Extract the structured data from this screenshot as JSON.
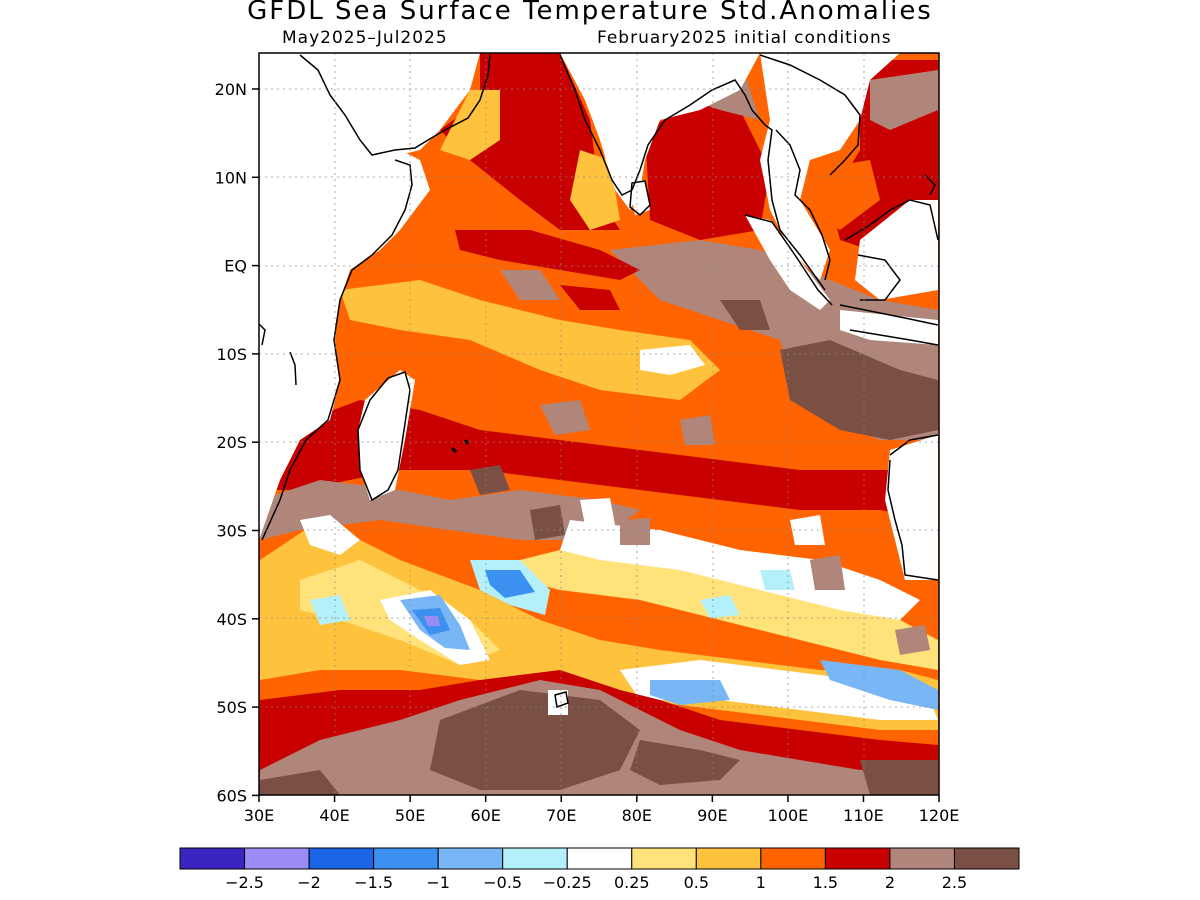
{
  "header": {
    "title": "GFDL Sea Surface Temperature Std.Anomalies",
    "period": "May2025–Jul2025",
    "init": "February2025 initial conditions"
  },
  "axes": {
    "lat_ticks": [
      "20N",
      "10N",
      "EQ",
      "10S",
      "20S",
      "30S",
      "40S",
      "50S",
      "60S"
    ],
    "lon_ticks": [
      "30E",
      "40E",
      "50E",
      "60E",
      "70E",
      "80E",
      "90E",
      "100E",
      "110E",
      "120E"
    ]
  },
  "colorbar": {
    "colors": [
      "#3b25c2",
      "#9b8bf4",
      "#1c64e6",
      "#3c91f0",
      "#78b6f5",
      "#b4f0fa",
      "#ffffff",
      "#ffe27a",
      "#ffc23c",
      "#ff6400",
      "#c80000",
      "#b0857a",
      "#7a5045"
    ],
    "labels": [
      "−2.5",
      "−2",
      "−1.5",
      "−1",
      "−0.5",
      "−0.25",
      "0.25",
      "0.5",
      "1",
      "1.5",
      "2",
      "2.5"
    ]
  },
  "map": {
    "lon_range": [
      30,
      120
    ],
    "lat_range": [
      -60,
      24
    ],
    "land_color": "#ffffff",
    "coastline_color": "#000000"
  }
}
